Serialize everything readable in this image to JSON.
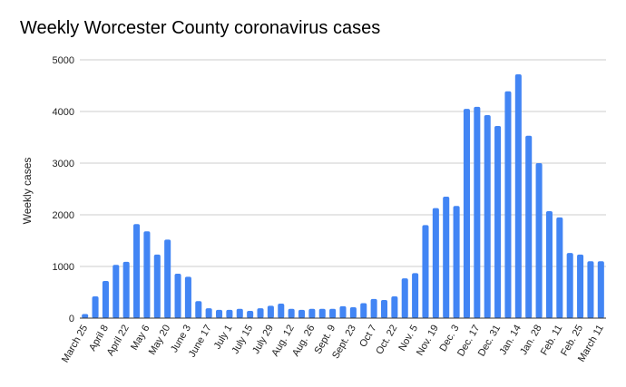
{
  "chart_data": {
    "type": "bar",
    "title": "Weekly Worcester County coronavirus cases",
    "xlabel": "",
    "ylabel": "Weekly cases",
    "ylim": [
      0,
      5000
    ],
    "yticks": [
      0,
      1000,
      2000,
      3000,
      4000,
      5000
    ],
    "grid": true,
    "bar_color": "#4285f4",
    "categories": [
      "March 25",
      "",
      "April 8",
      "",
      "April 22",
      "",
      "May 6",
      "",
      "May 20",
      "",
      "June 3",
      "",
      "June 17",
      "",
      "July 1",
      "",
      "July 15",
      "",
      "July 29",
      "",
      "Aug. 12",
      "",
      "Aug. 26",
      "",
      "Sept. 9",
      "",
      "Sept. 23",
      "",
      "Oct 7",
      "",
      "Oct. 22",
      "",
      "Nov. 5",
      "",
      "Nov. 19",
      "",
      "Dec. 3",
      "",
      "Dec. 17",
      "",
      "Dec. 31",
      "",
      "Jan. 14",
      "",
      "Jan. 28",
      "",
      "Feb. 11",
      "",
      "Feb. 25",
      "",
      "March 11"
    ],
    "values": [
      80,
      420,
      720,
      1030,
      1090,
      1820,
      1680,
      1230,
      1520,
      860,
      800,
      330,
      190,
      160,
      160,
      180,
      140,
      190,
      240,
      280,
      180,
      160,
      180,
      180,
      180,
      230,
      210,
      290,
      370,
      350,
      420,
      770,
      870,
      1800,
      2130,
      2350,
      2170,
      4050,
      4090,
      3930,
      3720,
      4390,
      4720,
      3530,
      3000,
      2070,
      1950,
      1260,
      1230,
      1100,
      1100
    ]
  }
}
